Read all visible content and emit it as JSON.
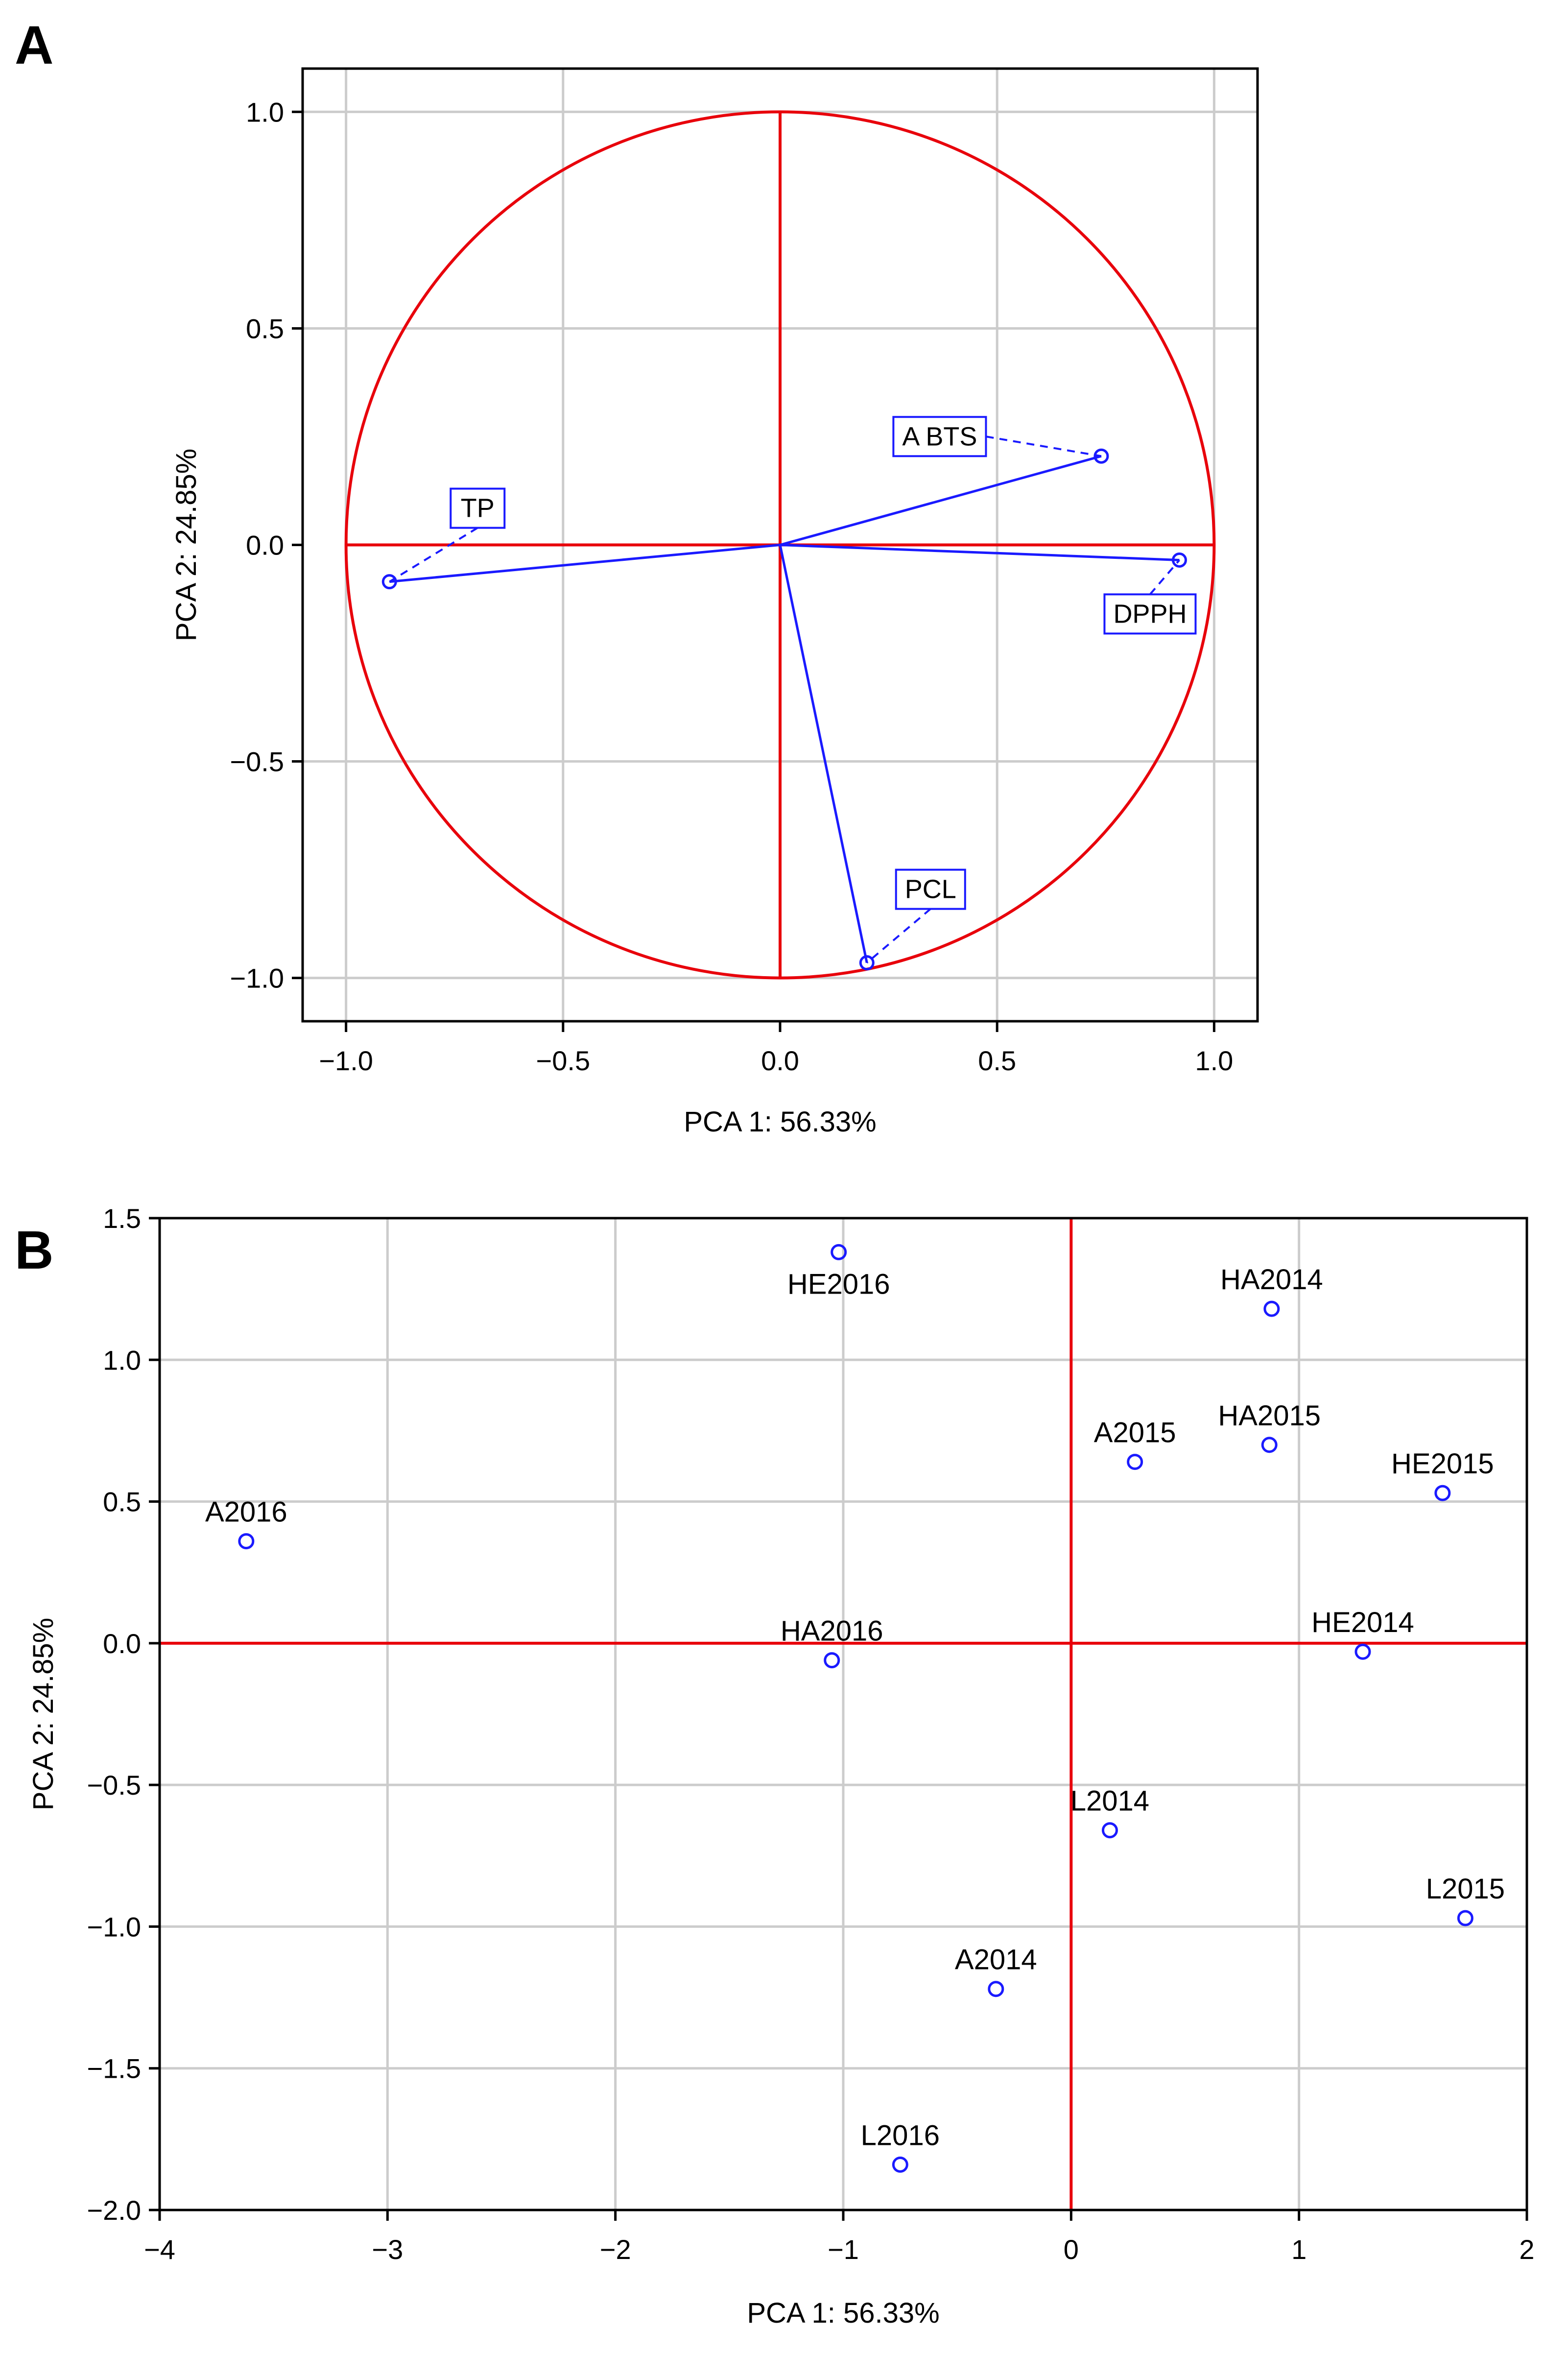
{
  "colors": {
    "red": "#e8000b",
    "blue": "#1a1aff",
    "grid": "#cccccc",
    "axis": "#000000"
  },
  "chart_data": [
    {
      "panel": "A",
      "type": "scatter",
      "subtype": "correlation-circle",
      "xlabel": "PCA 1: 56.33%",
      "ylabel": "PCA 2: 24.85%",
      "xlim": [
        -1.1,
        1.1
      ],
      "ylim": [
        -1.1,
        1.1
      ],
      "xticks": [
        -1.0,
        -0.5,
        0.0,
        0.5,
        1.0
      ],
      "yticks": [
        -1.0,
        -0.5,
        0.0,
        0.5,
        1.0
      ],
      "xtick_labels": [
        "−1.0",
        "−0.5",
        "0.0",
        "0.5",
        "1.0"
      ],
      "ytick_labels": [
        "−1.0",
        "−0.5",
        "0.0",
        "0.5",
        "1.0"
      ],
      "grid": true,
      "unit_circle_radius": 1.0,
      "vectors": [
        {
          "name": "TP",
          "x": -0.9,
          "y": -0.085
        },
        {
          "name": "A BTS",
          "x": 0.74,
          "y": 0.205
        },
        {
          "name": "DPPH",
          "x": 0.92,
          "y": -0.035
        },
        {
          "name": "PCL",
          "x": 0.2,
          "y": -0.965
        }
      ]
    },
    {
      "panel": "B",
      "type": "scatter",
      "xlabel": "PCA 1: 56.33%",
      "ylabel": "PCA 2: 24.85%",
      "xlim": [
        -4,
        2
      ],
      "ylim": [
        -2.0,
        1.5
      ],
      "xticks": [
        -4,
        -3,
        -2,
        -1,
        0,
        1,
        2
      ],
      "yticks": [
        -2.0,
        -1.5,
        -1.0,
        -0.5,
        0.0,
        0.5,
        1.0,
        1.5
      ],
      "xtick_labels": [
        "−4",
        "−3",
        "−2",
        "−1",
        "0",
        "1",
        "2"
      ],
      "ytick_labels": [
        "−2.0",
        "−1.5",
        "−1.0",
        "−0.5",
        "0.0",
        "0.5",
        "1.0",
        "1.5"
      ],
      "grid": true,
      "points": [
        {
          "name": "A2016",
          "x": -3.62,
          "y": 0.36
        },
        {
          "name": "HE2016",
          "x": -1.02,
          "y": 1.38
        },
        {
          "name": "HA2016",
          "x": -1.05,
          "y": -0.06
        },
        {
          "name": "A2014",
          "x": -0.33,
          "y": -1.22
        },
        {
          "name": "L2016",
          "x": -0.75,
          "y": -1.84
        },
        {
          "name": "L2014",
          "x": 0.17,
          "y": -0.66
        },
        {
          "name": "A2015",
          "x": 0.28,
          "y": 0.64
        },
        {
          "name": "HA2014",
          "x": 0.88,
          "y": 1.18
        },
        {
          "name": "HA2015",
          "x": 0.87,
          "y": 0.7
        },
        {
          "name": "HE2015",
          "x": 1.63,
          "y": 0.53
        },
        {
          "name": "HE2014",
          "x": 1.28,
          "y": -0.03
        },
        {
          "name": "L2015",
          "x": 1.73,
          "y": -0.97
        }
      ]
    }
  ]
}
